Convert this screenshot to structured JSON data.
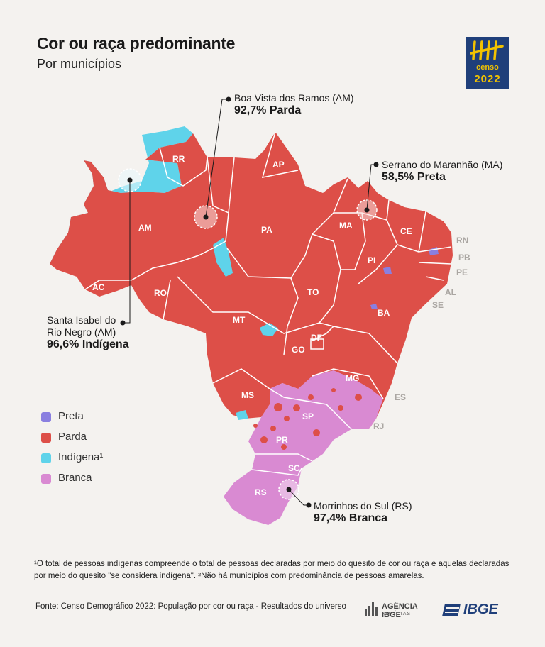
{
  "header": {
    "title": "Cor ou raça predominante",
    "subtitle": "Por municípios"
  },
  "logo": {
    "line1": "censo",
    "line2": "2022"
  },
  "colors": {
    "preta": "#8a7fe0",
    "parda": "#dd4f48",
    "indigena": "#5fd3ea",
    "branca": "#d98ad2",
    "background": "#f4f2ef",
    "border": "#ffffff"
  },
  "states": [
    "RR",
    "AP",
    "AM",
    "PA",
    "MA",
    "CE",
    "RN",
    "PB",
    "PE",
    "AL",
    "SE",
    "PI",
    "AC",
    "RO",
    "TO",
    "BA",
    "MT",
    "DF",
    "GO",
    "MG",
    "ES",
    "MS",
    "SP",
    "RJ",
    "PR",
    "SC",
    "RS"
  ],
  "callouts": [
    {
      "place": "Boa Vista dos Ramos (AM)",
      "value": "92,7% Parda"
    },
    {
      "place": "Serrano do Maranhão (MA)",
      "value": "58,5% Preta"
    },
    {
      "place_line1": "Santa Isabel do",
      "place_line2": "Rio Negro (AM)",
      "value": "96,6% Indígena"
    },
    {
      "place": "Morrinhos do Sul (RS)",
      "value": "97,4% Branca"
    }
  ],
  "legend": [
    {
      "label": "Preta",
      "color": "#8a7fe0"
    },
    {
      "label": "Parda",
      "color": "#dd4f48"
    },
    {
      "label": "Indígena¹",
      "color": "#5fd3ea"
    },
    {
      "label": "Branca",
      "color": "#d98ad2"
    }
  ],
  "footnote": "¹O total de pessoas indígenas compreende o total de pessoas declaradas por meio do quesito de cor ou raça e aquelas declaradas por meio do quesito \"se considera indígena\". ²Não há municípios com predominância de pessoas amarelas.",
  "source": "Fonte: Censo Demográfico 2022: População por cor ou raça - Resultados do universo",
  "footer_logos": {
    "agencia_line1": "AGÊNCIA IBGE",
    "agencia_line2": "NOTÍCIAS",
    "ibge": "IBGE"
  }
}
